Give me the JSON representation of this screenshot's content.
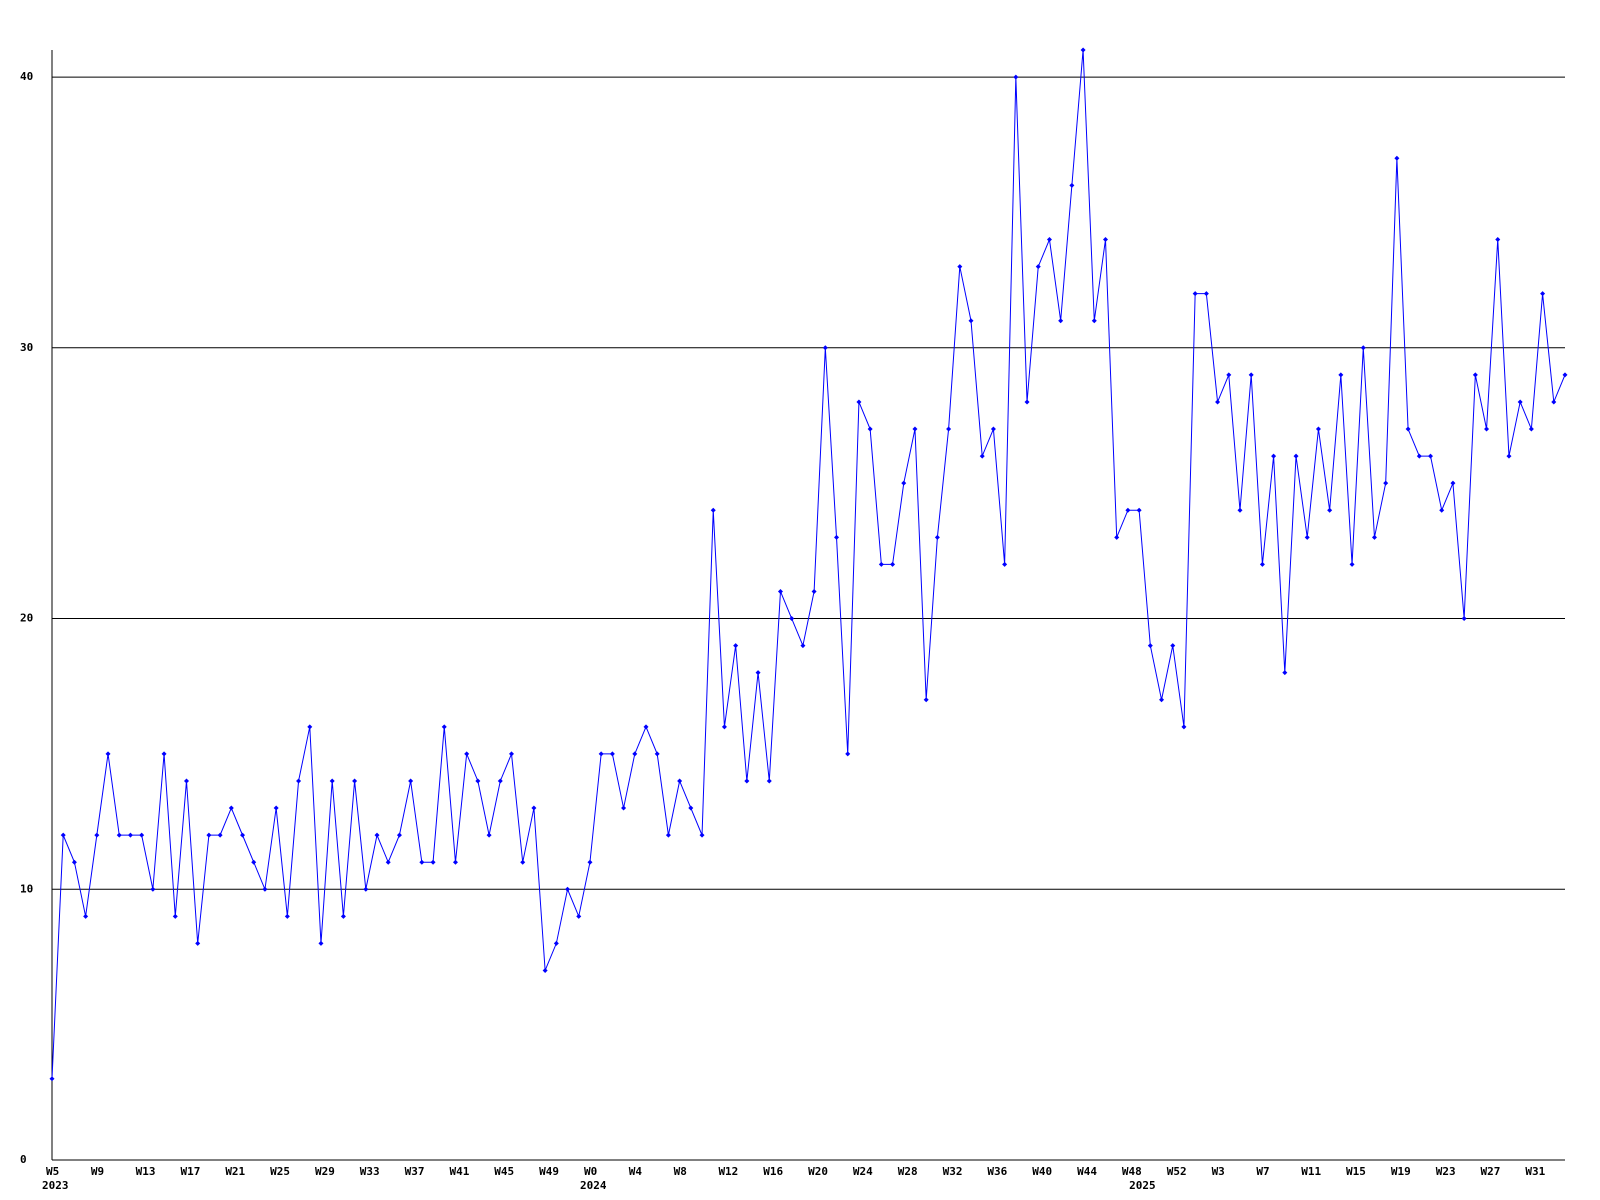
{
  "chart_data": {
    "type": "line",
    "categories": [
      "W5",
      null,
      null,
      null,
      "W9",
      null,
      null,
      null,
      "W13",
      null,
      null,
      null,
      "W17",
      null,
      null,
      null,
      "W21",
      null,
      null,
      null,
      "W25",
      null,
      null,
      null,
      "W29",
      null,
      null,
      null,
      "W33",
      null,
      null,
      null,
      "W37",
      null,
      null,
      null,
      "W41",
      null,
      null,
      null,
      "W45",
      null,
      null,
      null,
      "W49",
      null,
      null,
      null,
      "W0",
      null,
      null,
      null,
      "W4",
      null,
      null,
      null,
      "W8",
      null,
      null,
      null,
      "W12",
      null,
      null,
      null,
      "W16",
      null,
      null,
      null,
      "W20",
      null,
      null,
      null,
      "W24",
      null,
      null,
      null,
      "W28",
      null,
      null,
      null,
      "W32",
      null,
      null,
      null,
      "W36",
      null,
      null,
      null,
      "W40",
      null,
      null,
      null,
      "W44",
      null,
      null,
      null,
      "W48",
      null,
      null,
      null,
      "W52",
      null,
      null,
      null,
      "W3",
      null,
      null,
      null,
      "W7",
      null,
      null,
      null,
      "W11",
      null,
      null,
      null,
      "W15",
      null,
      null,
      null,
      "W19",
      null,
      null,
      null,
      "W23",
      null,
      null,
      null,
      "W27",
      null,
      null,
      null,
      "W31",
      null,
      null,
      null
    ],
    "year_labels": [
      "2023",
      null,
      null,
      null,
      null,
      null,
      null,
      null,
      null,
      null,
      null,
      null,
      null,
      null,
      null,
      null,
      null,
      null,
      null,
      null,
      null,
      null,
      null,
      null,
      null,
      null,
      null,
      null,
      null,
      null,
      null,
      null,
      null,
      null,
      null,
      null,
      null,
      null,
      null,
      null,
      null,
      null,
      null,
      null,
      null,
      null,
      null,
      null,
      "2024",
      null,
      null,
      null,
      null,
      null,
      null,
      null,
      null,
      null,
      null,
      null,
      null,
      null,
      null,
      null,
      null,
      null,
      null,
      null,
      null,
      null,
      null,
      null,
      null,
      null,
      null,
      null,
      null,
      null,
      null,
      null,
      null,
      null,
      null,
      null,
      null,
      null,
      null,
      null,
      null,
      null,
      null,
      null,
      null,
      null,
      null,
      null,
      null,
      "2025",
      null,
      null,
      null,
      null,
      null,
      null,
      null,
      null,
      null,
      null,
      null,
      null,
      null,
      null,
      null,
      null,
      null,
      null,
      null,
      null,
      null,
      null,
      null,
      null,
      null,
      null,
      null,
      null,
      null,
      null,
      null,
      null,
      null,
      null
    ],
    "series": [
      {
        "color": "#0000ff",
        "values": [
          3,
          12,
          11,
          9,
          12,
          15,
          12,
          12,
          12,
          10,
          15,
          9,
          14,
          8,
          12,
          12,
          13,
          12,
          11,
          10,
          13,
          9,
          14,
          16,
          8,
          14,
          9,
          14,
          10,
          12,
          11,
          12,
          14,
          11,
          11,
          16,
          11,
          15,
          14,
          12,
          14,
          15,
          11,
          13,
          7,
          8,
          10,
          9,
          11,
          15,
          15,
          13,
          15,
          16,
          15,
          12,
          14,
          13,
          12,
          24,
          16,
          19,
          14,
          18,
          14,
          21,
          20,
          19,
          21,
          30,
          23,
          15,
          28,
          27,
          22,
          22,
          25,
          27,
          17,
          23,
          27,
          33,
          31,
          26,
          27,
          22,
          40,
          28,
          33,
          34,
          31,
          36,
          41,
          31,
          34,
          23,
          24,
          24,
          19,
          17,
          19,
          16,
          32,
          32,
          28,
          29,
          24,
          29,
          22,
          26,
          18,
          26,
          23,
          27,
          24,
          29,
          22,
          30,
          23,
          25,
          37,
          27,
          26,
          26,
          24,
          25,
          20,
          29,
          27,
          34,
          26,
          28,
          27,
          32,
          28,
          29
        ]
      }
    ],
    "ylim": [
      0,
      41
    ],
    "yticks": [
      0,
      10,
      20,
      30,
      40
    ],
    "grid": true
  }
}
